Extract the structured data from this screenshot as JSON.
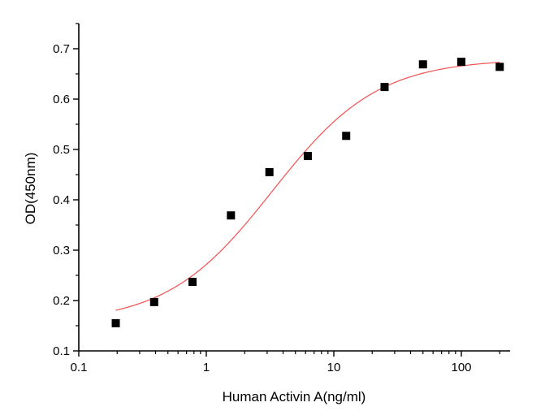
{
  "chart_data": {
    "type": "scatter",
    "title": "",
    "xlabel": "Human Activin A(ng/ml)",
    "ylabel": "OD(450nm)",
    "xscale": "log",
    "xlim": [
      0.1,
      241
    ],
    "ylim": [
      0.1,
      0.75
    ],
    "grid": false,
    "xticks": [
      "0.1",
      "1",
      "10",
      "100"
    ],
    "xtick_values": [
      0.1,
      1,
      10,
      100
    ],
    "yticks": [
      "0.1",
      "0.2",
      "0.3",
      "0.4",
      "0.5",
      "0.6",
      "0.7"
    ],
    "ytick_values": [
      0.1,
      0.2,
      0.3,
      0.4,
      0.5,
      0.6,
      0.7
    ],
    "points": {
      "x": [
        0.195,
        0.39,
        0.78,
        1.56,
        3.125,
        6.25,
        12.5,
        25,
        50,
        100,
        200
      ],
      "y": [
        0.155,
        0.197,
        0.237,
        0.369,
        0.455,
        0.487,
        0.527,
        0.624,
        0.669,
        0.674,
        0.664
      ],
      "marker": "square",
      "color": "#000000"
    },
    "fit_curve": {
      "model": "4PL",
      "bottom": 0.155,
      "top": 0.68,
      "ec50": 3.3,
      "hill": 1.05,
      "x_range": [
        0.195,
        200
      ],
      "color": "#f05050"
    }
  }
}
